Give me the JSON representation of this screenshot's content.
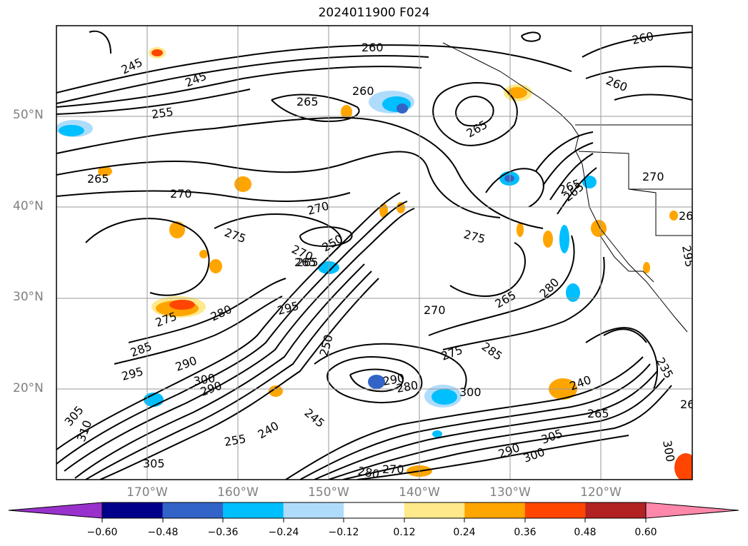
{
  "title": "2024011900 F024",
  "latitude_labels": [
    "50°N",
    "40°N",
    "30°N",
    "20°N"
  ],
  "longitude_labels": [
    "170°W",
    "160°W",
    "150°W",
    "140°W",
    "130°W",
    "120°W"
  ],
  "colorbar": {
    "ticks": [
      "−0.60",
      "−0.48",
      "−0.36",
      "−0.24",
      "−0.12",
      "0.12",
      "0.24",
      "0.36",
      "0.48",
      "0.60"
    ],
    "colors": [
      "#9932cc",
      "#00008b",
      "#3264c8",
      "#00bfff",
      "#afdcfa",
      "#ffffff",
      "#ffe98a",
      "#ffa500",
      "#ff4500",
      "#b22222",
      "#ff88aa"
    ]
  },
  "contour_labels": [
    "245",
    "245",
    "255",
    "265",
    "270",
    "260",
    "265",
    "260",
    "265",
    "260",
    "260",
    "270",
    "265",
    "265",
    "270",
    "275",
    "275",
    "270",
    "265",
    "250",
    "265",
    "275",
    "280",
    "295",
    "285",
    "295",
    "290",
    "300",
    "290",
    "250",
    "270",
    "275",
    "265",
    "280",
    "290",
    "280",
    "300",
    "285",
    "240",
    "265",
    "240",
    "245",
    "255",
    "305",
    "310",
    "305",
    "300",
    "305",
    "290",
    "280",
    "270",
    "235",
    "300",
    "26",
    "26",
    "295"
  ]
}
